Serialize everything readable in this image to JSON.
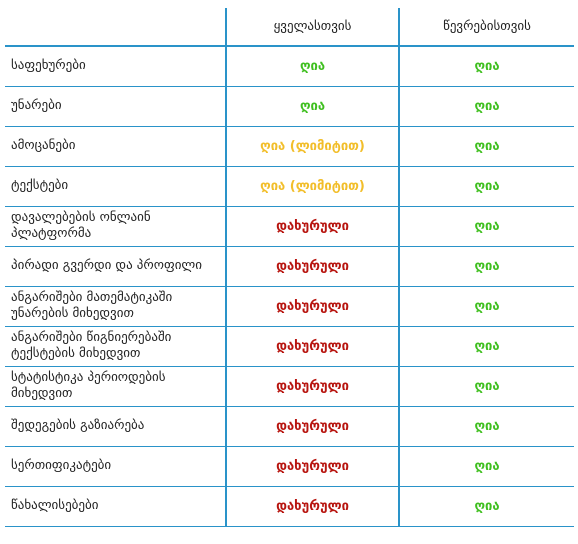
{
  "colors": {
    "border": "#2a93c9",
    "open": "#3fbf1f",
    "limited": "#f2be2a",
    "closed": "#b8150f"
  },
  "header": {
    "feature": "",
    "all": "ყველასთვის",
    "members": "წევრებისთვის"
  },
  "rows": [
    {
      "feature": "საფეხურები",
      "all": "ღია",
      "all_status": "open",
      "members": "ღია",
      "members_status": "open"
    },
    {
      "feature": "უნარები",
      "all": "ღია",
      "all_status": "open",
      "members": "ღია",
      "members_status": "open"
    },
    {
      "feature": "ამოცანები",
      "all": "ღია (ლიმიტით)",
      "all_status": "limited",
      "members": "ღია",
      "members_status": "open"
    },
    {
      "feature": "ტექსტები",
      "all": "ღია (ლიმიტით)",
      "all_status": "limited",
      "members": "ღია",
      "members_status": "open"
    },
    {
      "feature": "დავალებების ონლაინ პლატფორმა",
      "all": "დახურული",
      "all_status": "closed",
      "members": "ღია",
      "members_status": "open"
    },
    {
      "feature": "პირადი გვერდი და პროფილი",
      "all": "დახურული",
      "all_status": "closed",
      "members": "ღია",
      "members_status": "open"
    },
    {
      "feature": "ანგარიშები მათემატიკაში უნარების მიხედვით",
      "all": "დახურული",
      "all_status": "closed",
      "members": "ღია",
      "members_status": "open"
    },
    {
      "feature": "ანგარიშები წიგნიერებაში ტექსტების მიხედვით",
      "all": "დახურული",
      "all_status": "closed",
      "members": "ღია",
      "members_status": "open"
    },
    {
      "feature": "სტატისტიკა პერიოდების მიხედვით",
      "all": "დახურული",
      "all_status": "closed",
      "members": "ღია",
      "members_status": "open"
    },
    {
      "feature": "შედეგების გაზიარება",
      "all": "დახურული",
      "all_status": "closed",
      "members": "ღია",
      "members_status": "open"
    },
    {
      "feature": "სერთიფიკატები",
      "all": "დახურული",
      "all_status": "closed",
      "members": "ღია",
      "members_status": "open"
    },
    {
      "feature": "წახალისებები",
      "all": "დახურული",
      "all_status": "closed",
      "members": "ღია",
      "members_status": "open"
    }
  ]
}
